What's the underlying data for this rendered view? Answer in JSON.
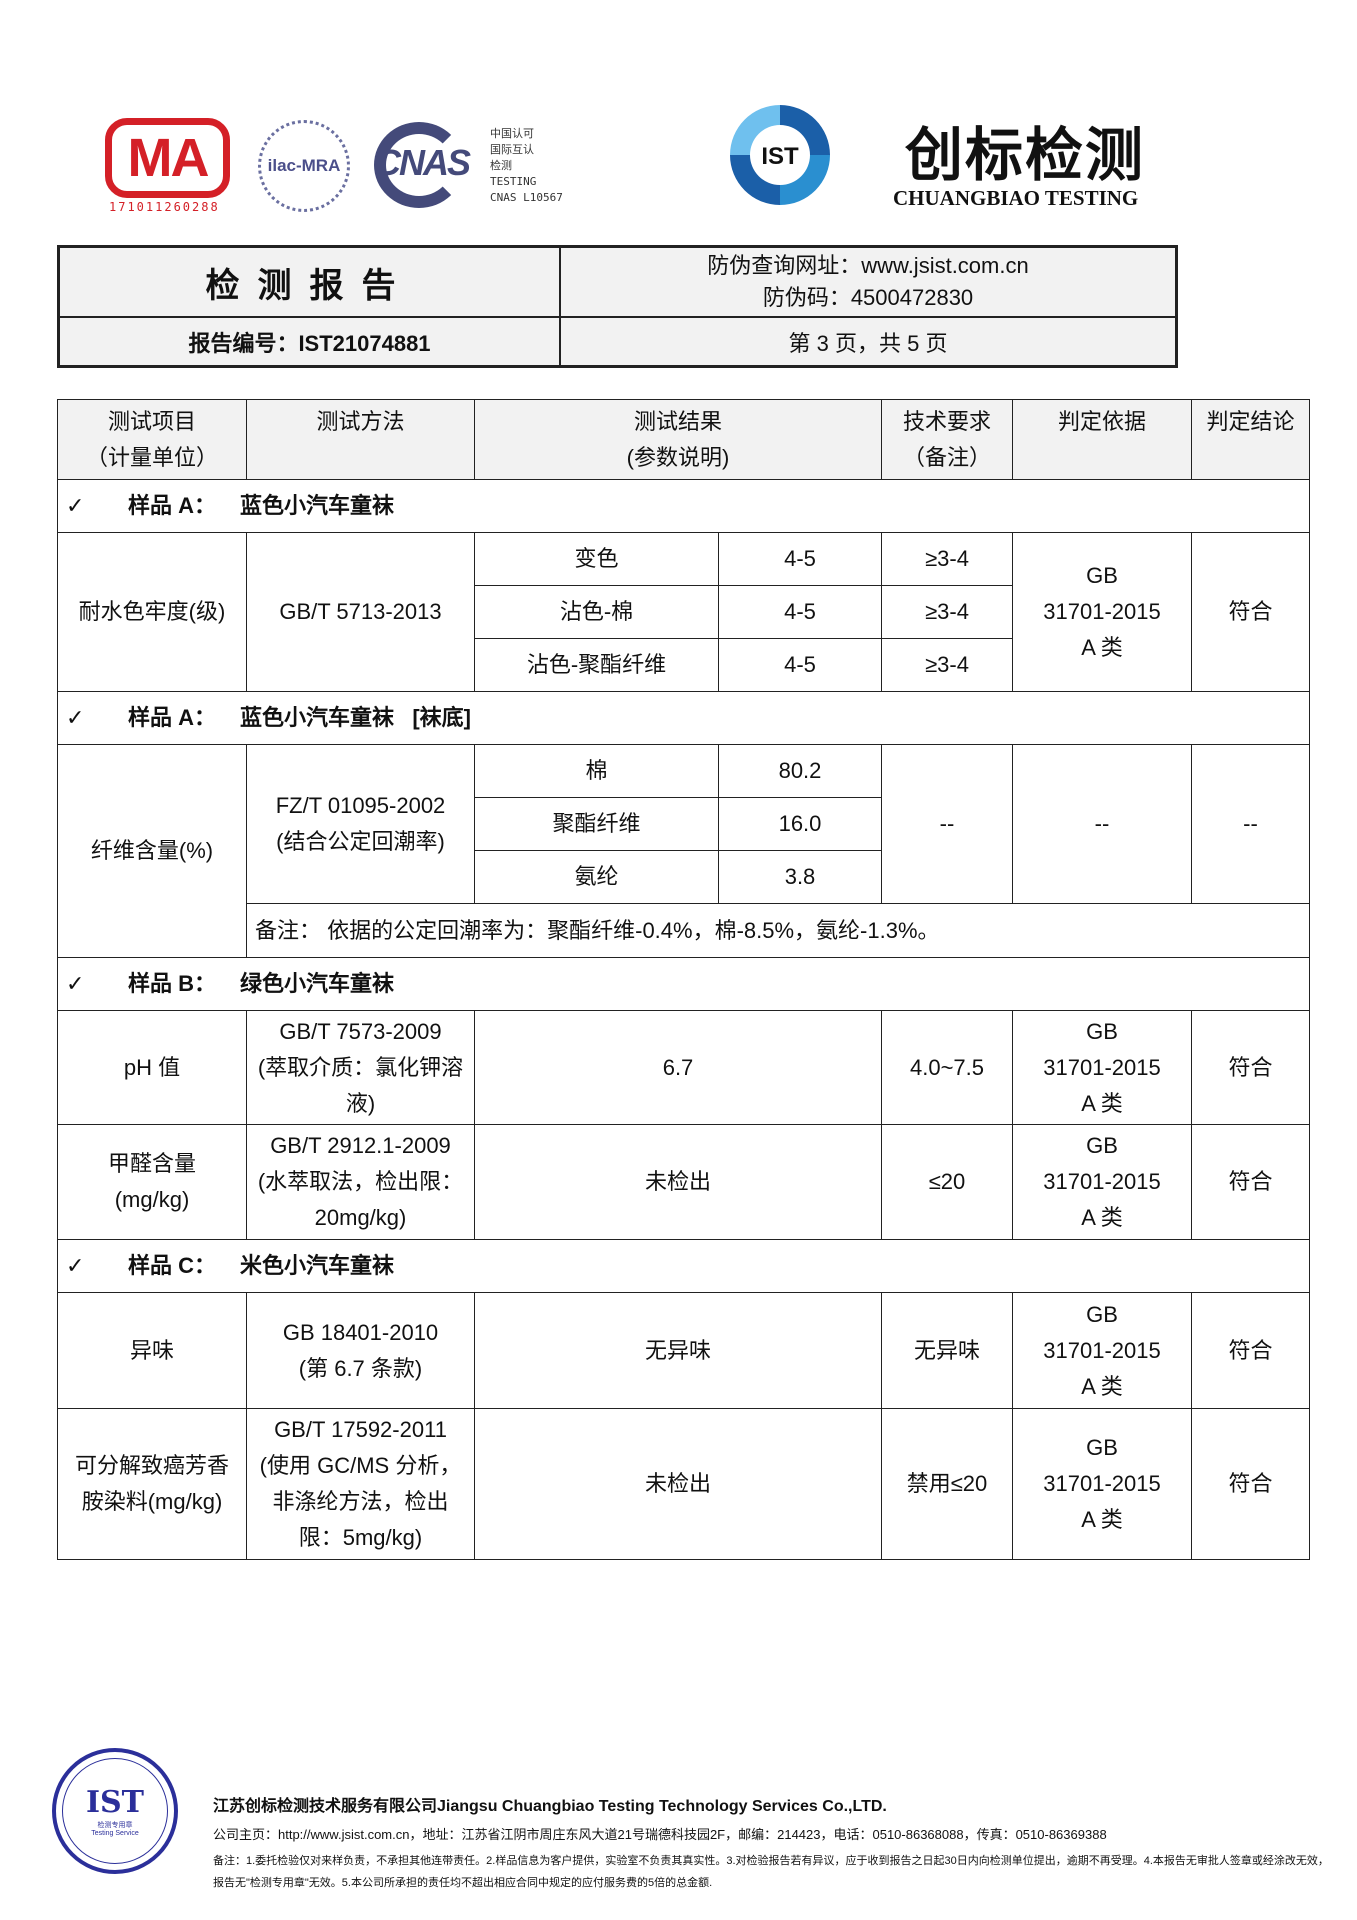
{
  "logos": {
    "ma": {
      "text": "MA",
      "number": "171011260288",
      "color": "#d42027"
    },
    "ilac": {
      "text": "ilac-MRA"
    },
    "cnas": {
      "text": "CNAS",
      "side_lines": [
        "中国认可",
        "国际互认",
        "检测",
        "TESTING",
        "CNAS L10567"
      ]
    },
    "ist": {
      "text": "IST"
    },
    "brand_cn": "创标检测",
    "brand_en": "CHUANGBIAO TESTING"
  },
  "header": {
    "title": "检测报告",
    "verify_url": "防伪查询网址：www.jsist.com.cn",
    "verify_code": "防伪码：4500472830",
    "report_no": "报告编号：IST21074881",
    "page_info": "第 3 页，共 5 页"
  },
  "table": {
    "columns": [
      [
        "测试项目",
        "（计量单位）"
      ],
      [
        "测试方法",
        ""
      ],
      [
        "测试结果",
        "(参数说明)"
      ],
      [
        "技术要求",
        "（备注）"
      ],
      [
        "判定依据",
        ""
      ],
      [
        "判定结论",
        ""
      ]
    ],
    "check": "✓",
    "samples": [
      {
        "label": "样品 A：",
        "name": "蓝色小汽车童袜",
        "suffix": ""
      },
      {
        "label": "样品 A：",
        "name": "蓝色小汽车童袜",
        "suffix": "[袜底]"
      },
      {
        "label": "样品 B：",
        "name": "绿色小汽车童袜",
        "suffix": ""
      },
      {
        "label": "样品 C：",
        "name": "米色小汽车童袜",
        "suffix": ""
      }
    ],
    "colorfastness": {
      "item": "耐水色牢度(级)",
      "method": "GB/T 5713-2013",
      "rows": [
        {
          "param": "变色",
          "value": "4-5",
          "req": "≥3-4"
        },
        {
          "param": "沾色-棉",
          "value": "4-5",
          "req": "≥3-4"
        },
        {
          "param": "沾色-聚酯纤维",
          "value": "4-5",
          "req": "≥3-4"
        }
      ],
      "basis": [
        "GB",
        "31701-2015",
        "A 类"
      ],
      "conclusion": "符合"
    },
    "fiber": {
      "item": "纤维含量(%)",
      "method": [
        "FZ/T 01095-2002",
        "(结合公定回潮率)"
      ],
      "rows": [
        {
          "param": "棉",
          "value": "80.2"
        },
        {
          "param": "聚酯纤维",
          "value": "16.0"
        },
        {
          "param": "氨纶",
          "value": "3.8"
        }
      ],
      "req": "--",
      "basis": "--",
      "conclusion": "--",
      "note": "备注：  依据的公定回潮率为：聚酯纤维-0.4%，棉-8.5%，氨纶-1.3%。"
    },
    "ph": {
      "item": "pH 值",
      "method": [
        "GB/T 7573-2009",
        "(萃取介质：氯化钾溶",
        "液)"
      ],
      "result": "6.7",
      "req": "4.0~7.5",
      "basis": [
        "GB",
        "31701-2015",
        "A 类"
      ],
      "conclusion": "符合"
    },
    "formaldehyde": {
      "item": [
        "甲醛含量",
        "(mg/kg)"
      ],
      "method": [
        "GB/T 2912.1-2009",
        "(水萃取法，检出限：",
        "20mg/kg)"
      ],
      "result": "未检出",
      "req": "≤20",
      "basis": [
        "GB",
        "31701-2015",
        "A 类"
      ],
      "conclusion": "符合"
    },
    "odor": {
      "item": "异味",
      "method": [
        "GB 18401-2010",
        "(第 6.7 条款)"
      ],
      "result": "无异味",
      "req": "无异味",
      "basis": [
        "GB",
        "31701-2015",
        "A 类"
      ],
      "conclusion": "符合"
    },
    "azo": {
      "item": [
        "可分解致癌芳香",
        "胺染料(mg/kg)"
      ],
      "method": [
        "GB/T 17592-2011",
        "(使用 GC/MS 分析，",
        "非涤纶方法，检出",
        "限：5mg/kg)"
      ],
      "result": "未检出",
      "req": "禁用≤20",
      "basis": [
        "GB",
        "31701-2015",
        "A 类"
      ],
      "conclusion": "符合"
    }
  },
  "footer": {
    "seal": {
      "text": "IST",
      "sub1": "检测专用章",
      "sub2": "Testing Service",
      "color": "#2b2f9a"
    },
    "company": "江苏创标检测技术服务有限公司Jiangsu Chuangbiao Testing Technology Services Co.,LTD.",
    "contact": "公司主页：http://www.jsist.com.cn，地址：江苏省江阴市周庄东风大道21号瑞德科技园2F，邮编：214423，电话：0510-86368088，传真：0510-86369388",
    "notes": "备注：1.委托检验仅对来样负责，不承担其他连带责任。2.样品信息为客户提供，实验室不负责其真实性。3.对检验报告若有异议，应于收到报告之日起30日内向检测单位提出，逾期不再受理。4.本报告无审批人签章或经涂改无效，报告无\"检测专用章\"无效。5.本公司所承担的责任均不超出相应合同中规定的应付服务费的5倍的总金额."
  }
}
